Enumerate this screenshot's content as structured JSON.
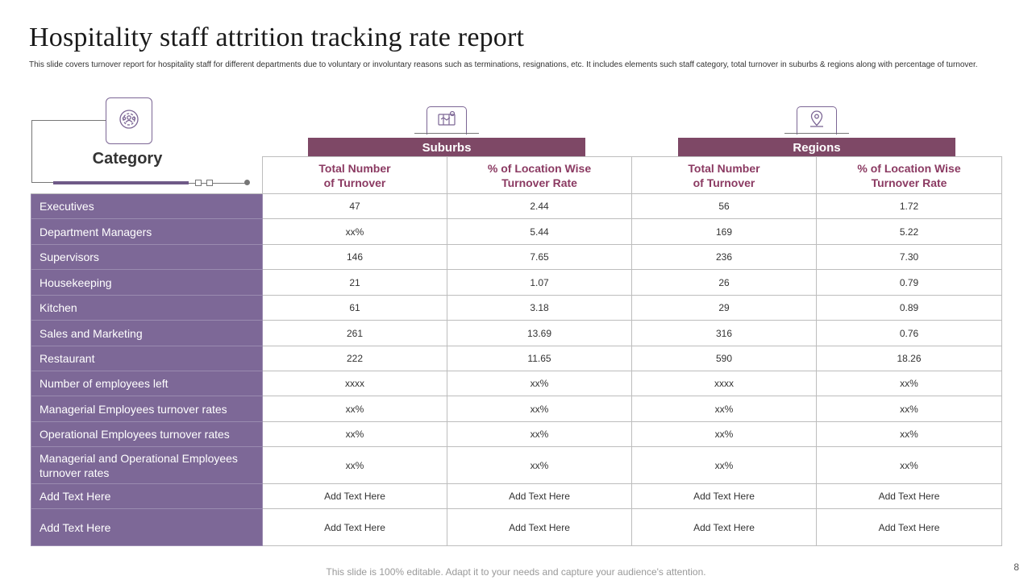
{
  "title": "Hospitality staff attrition tracking rate report",
  "subtitle": "This slide covers turnover report for hospitality staff for different departments due to voluntary or involuntary reasons such as terminations, resignations, etc. It includes elements such staff category, total turnover in suburbs & regions along with percentage of turnover.",
  "category_label": "Category",
  "groups": {
    "suburbs": "Suburbs",
    "regions": "Regions"
  },
  "columns": [
    "Total Number\nof Turnover",
    "% of Location Wise\nTurnover Rate",
    "Total Number\nof Turnover",
    "% of Location Wise\nTurnover Rate"
  ],
  "rows": [
    {
      "category": "Executives",
      "values": [
        "47",
        "2.44",
        "56",
        "1.72"
      ]
    },
    {
      "category": "Department Managers",
      "values": [
        "xx%",
        "5.44",
        "169",
        "5.22"
      ]
    },
    {
      "category": "Supervisors",
      "values": [
        "146",
        "7.65",
        "236",
        "7.30"
      ]
    },
    {
      "category": "Housekeeping",
      "values": [
        "21",
        "1.07",
        "26",
        "0.79"
      ]
    },
    {
      "category": "Kitchen",
      "values": [
        "61",
        "3.18",
        "29",
        "0.89"
      ]
    },
    {
      "category": "Sales and Marketing",
      "values": [
        "261",
        "13.69",
        "316",
        "0.76"
      ]
    },
    {
      "category": "Restaurant",
      "values": [
        "222",
        "11.65",
        "590",
        "18.26"
      ]
    },
    {
      "category": "Number of employees left",
      "values": [
        "xxxx",
        "xx%",
        "xxxx",
        "xx%"
      ]
    },
    {
      "category": "Managerial  Employees turnover rates",
      "values": [
        "xx%",
        "xx%",
        "xx%",
        "xx%"
      ]
    },
    {
      "category": "Operational Employees turnover rates",
      "values": [
        "xx%",
        "xx%",
        "xx%",
        "xx%"
      ]
    },
    {
      "category": "Managerial and Operational Employees turnover rates",
      "values": [
        "xx%",
        "xx%",
        "xx%",
        "xx%"
      ]
    },
    {
      "category": "Add Text Here",
      "values": [
        "Add Text Here",
        "Add Text Here",
        "Add Text Here",
        "Add Text Here"
      ]
    },
    {
      "category": "Add Text Here",
      "values": [
        "Add Text Here",
        "Add Text Here",
        "Add Text Here",
        "Add Text Here"
      ]
    }
  ],
  "footer": "This slide is 100% editable. Adapt it to your needs and capture your audience's attention.",
  "page_number": "8",
  "icons": {
    "category": "staff-gear-icon",
    "suburbs": "location-map-icon",
    "regions": "map-pin-icon"
  },
  "colors": {
    "category_fill": "#7d6897",
    "group_header": "#7e4866",
    "header_text": "#8b3a62"
  }
}
